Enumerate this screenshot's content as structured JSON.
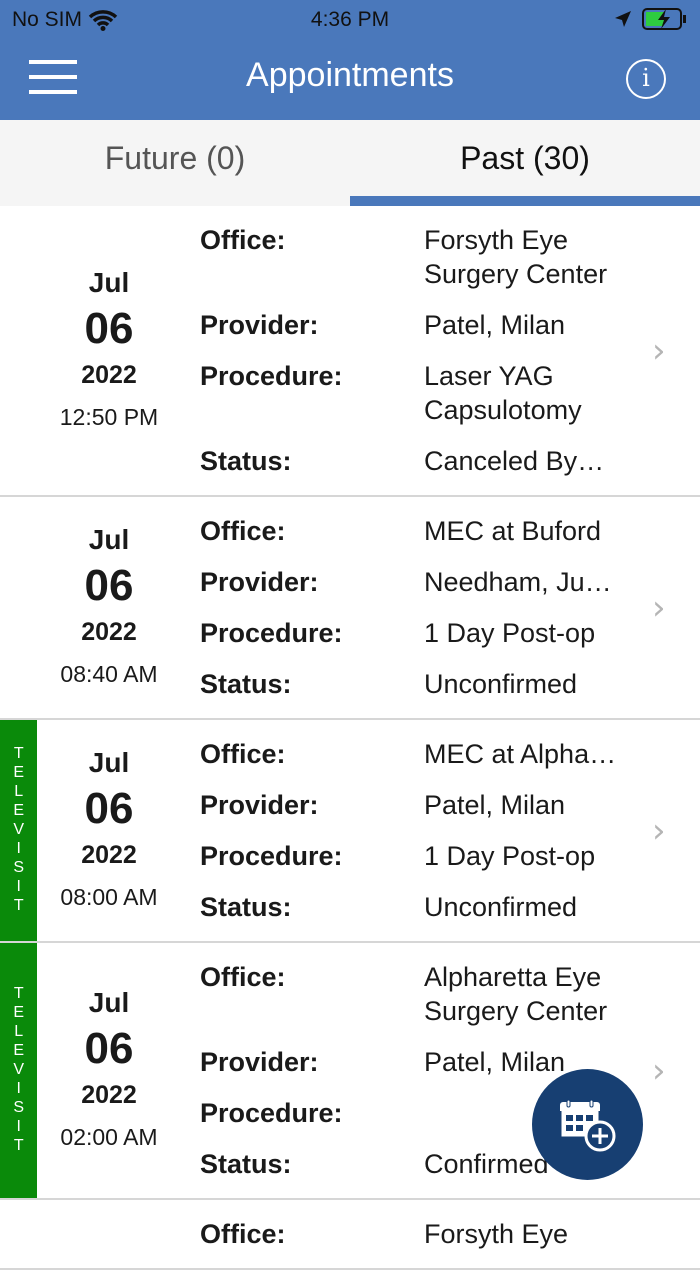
{
  "status_bar": {
    "carrier": "No SIM",
    "time": "4:36 PM"
  },
  "header": {
    "title": "Appointments",
    "info_label": "i"
  },
  "tabs": [
    {
      "label": "Future (0)",
      "active": false
    },
    {
      "label": "Past (30)",
      "active": true
    }
  ],
  "labels": {
    "office": "Office:",
    "provider": "Provider:",
    "procedure": "Procedure:",
    "status": "Status:",
    "televisit": "TELEVISIT"
  },
  "appointments": [
    {
      "month": "Jul",
      "day": "06",
      "year": "2022",
      "time": "12:50 PM",
      "televisit": false,
      "office": "Forsyth Eye Surgery Center",
      "provider": "Patel, Milan",
      "procedure": "Laser YAG Capsulotomy",
      "status": "Canceled By…"
    },
    {
      "month": "Jul",
      "day": "06",
      "year": "2022",
      "time": "08:40 AM",
      "televisit": false,
      "office": "MEC at Buford",
      "provider": "Needham, Ju…",
      "procedure": "1 Day Post-op",
      "status": "Unconfirmed"
    },
    {
      "month": "Jul",
      "day": "06",
      "year": "2022",
      "time": "08:00 AM",
      "televisit": true,
      "office": "MEC at Alpha…",
      "provider": "Patel, Milan",
      "procedure": "1 Day Post-op",
      "status": "Unconfirmed"
    },
    {
      "month": "Jul",
      "day": "06",
      "year": "2022",
      "time": "02:00 AM",
      "televisit": true,
      "office": "Alpharetta Eye Surgery Center",
      "provider": "Patel, Milan",
      "procedure": "",
      "status": "Confirmed"
    },
    {
      "office": "Forsyth Eye"
    }
  ],
  "colors": {
    "header": "#4a78bb",
    "televisit": "#0a8a0a",
    "fab": "#173f72"
  }
}
